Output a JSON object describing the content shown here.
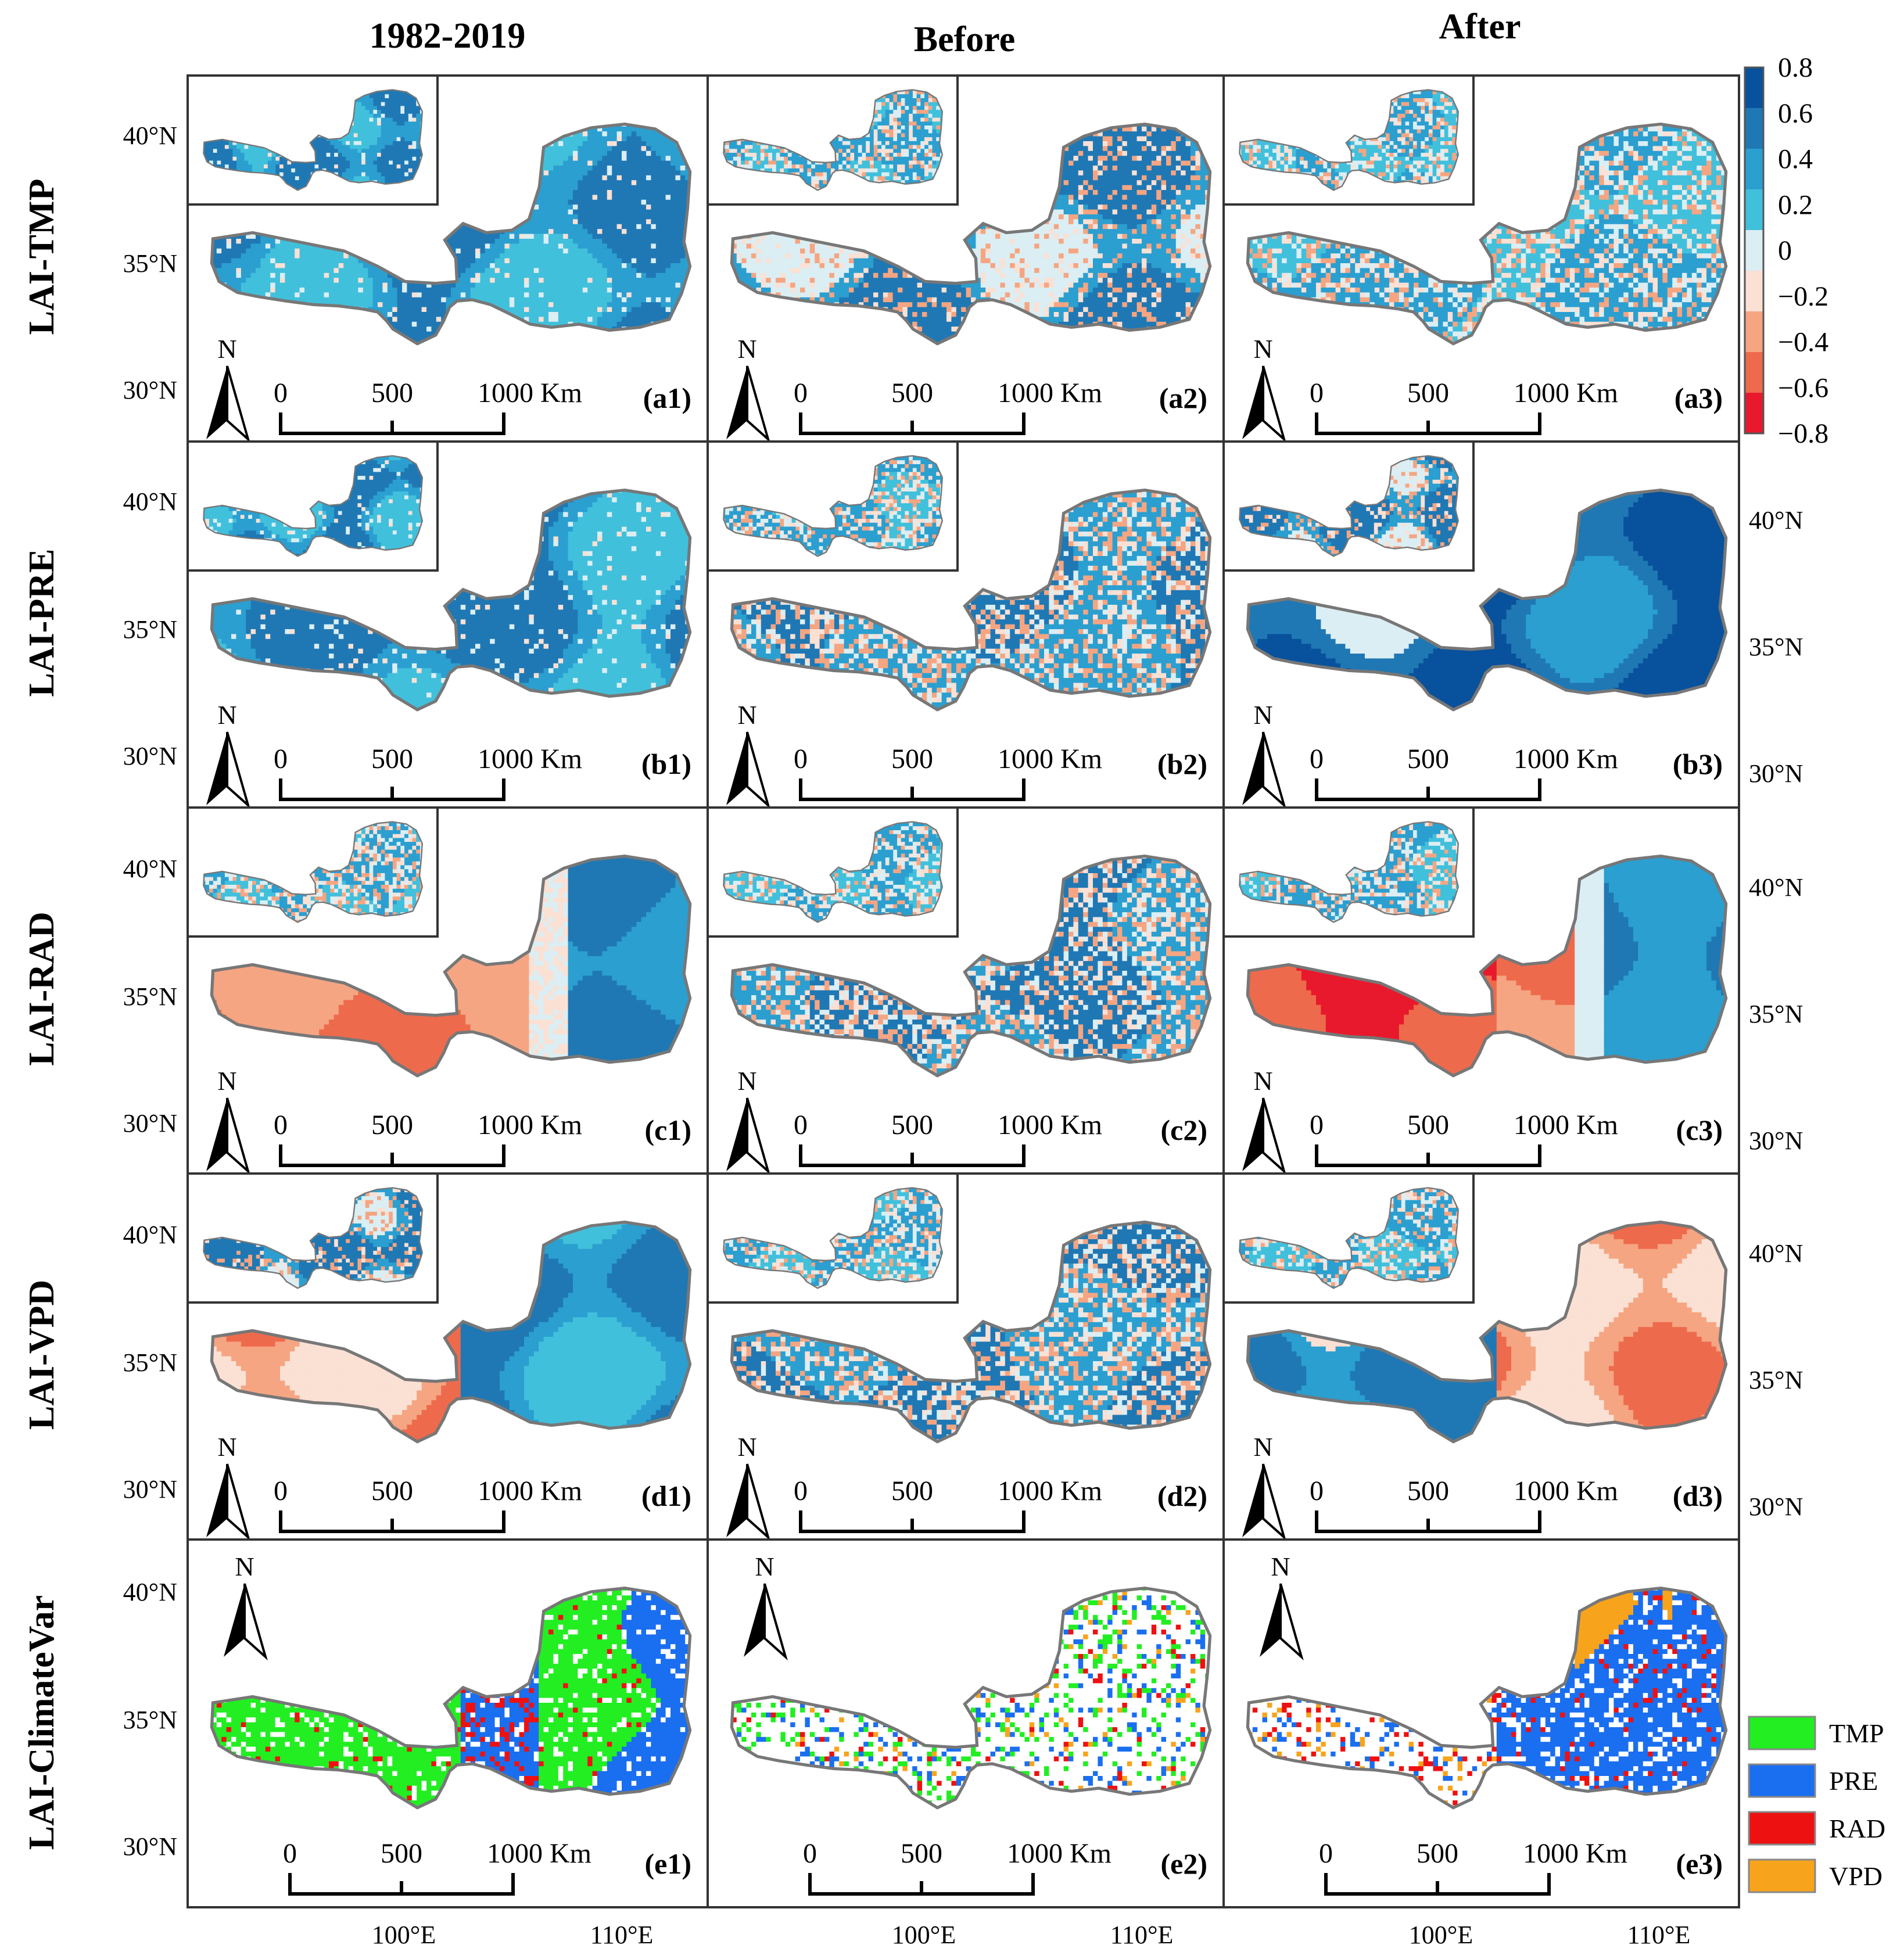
{
  "columns": [
    "1982-2019",
    "Before",
    "After"
  ],
  "rows": [
    {
      "label": "LAI-TMP",
      "panels": [
        "(a1)",
        "(a2)",
        "(a3)"
      ]
    },
    {
      "label": "LAI-PRE",
      "panels": [
        "(b1)",
        "(b2)",
        "(b3)"
      ]
    },
    {
      "label": "LAI-RAD",
      "panels": [
        "(c1)",
        "(c2)",
        "(c3)"
      ]
    },
    {
      "label": "LAI-VPD",
      "panels": [
        "(d1)",
        "(d2)",
        "(d3)"
      ]
    },
    {
      "label": "LAI-ClimateVar",
      "panels": [
        "(e1)",
        "(e2)",
        "(e3)"
      ]
    }
  ],
  "lat_labels": [
    "40°N",
    "35°N",
    "30°N"
  ],
  "lon_labels": [
    "100°E",
    "110°E"
  ],
  "scale_bar": {
    "zero": "0",
    "mid": "500",
    "end": "1000 Km"
  },
  "north_label": "N",
  "colorbar": {
    "ticks": [
      "0.8",
      "0.6",
      "0.4",
      "0.2",
      "0",
      "−0.2",
      "−0.4",
      "−0.6",
      "−0.8"
    ],
    "colors": [
      "#08519c",
      "#1f78b4",
      "#2b9fd0",
      "#41c0dc",
      "#dbeef3",
      "#fbe0d4",
      "#f5a582",
      "#ee6a4c",
      "#e8192c"
    ]
  },
  "legend": [
    {
      "label": "TMP",
      "color": "#22ee22"
    },
    {
      "label": "PRE",
      "color": "#1a6ef0"
    },
    {
      "label": "RAD",
      "color": "#ee1111"
    },
    {
      "label": "VPD",
      "color": "#f7a41c"
    }
  ],
  "cell_styles": [
    [
      "blue",
      "sparse_blue",
      "sparse"
    ],
    [
      "blue",
      "mixed",
      "blue_strong"
    ],
    [
      "rad1",
      "mixed",
      "rad3"
    ],
    [
      "vpd1",
      "mixed",
      "vpd3"
    ],
    [
      "cat1",
      "cat2",
      "cat3"
    ]
  ]
}
